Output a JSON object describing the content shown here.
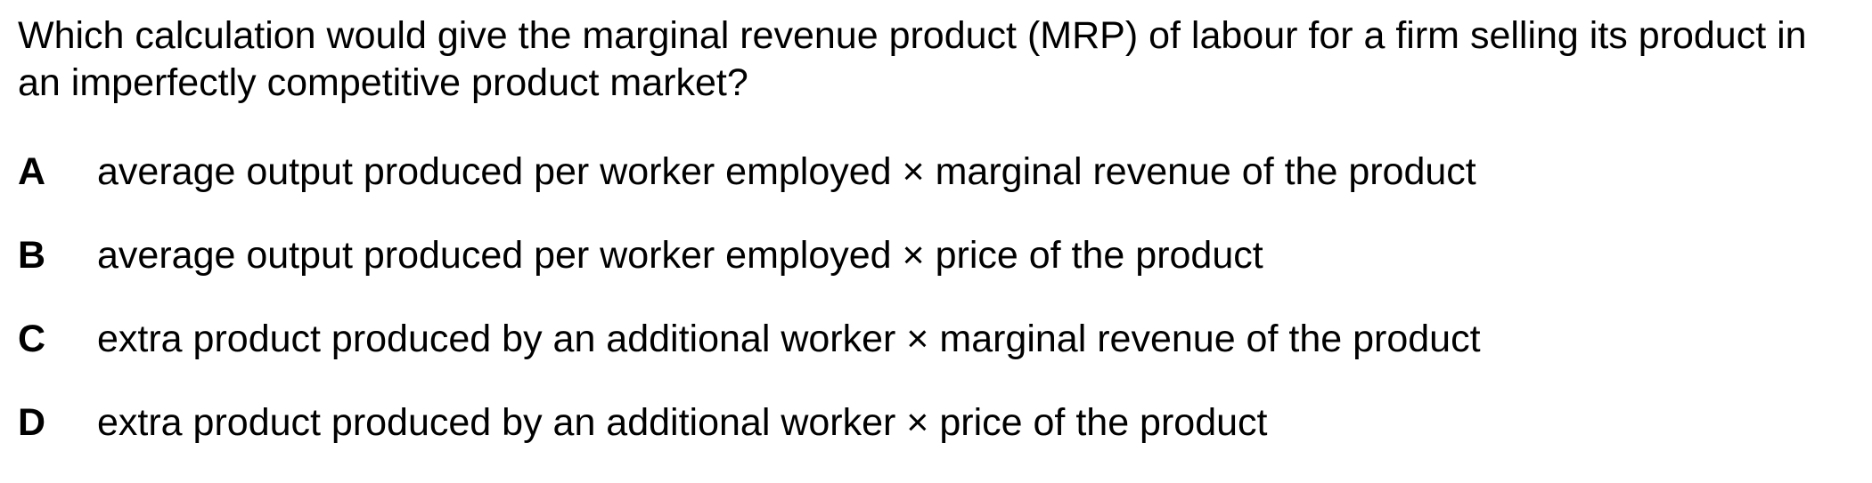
{
  "question": {
    "text": "Which calculation would give the marginal revenue product (MRP) of labour for a firm selling its product in an imperfectly competitive product market?"
  },
  "options": [
    {
      "letter": "A",
      "text": "average output produced per worker employed × marginal revenue of the product"
    },
    {
      "letter": "B",
      "text": "average output produced per worker employed × price of the product"
    },
    {
      "letter": "C",
      "text": "extra product produced by an additional worker × marginal revenue of the product"
    },
    {
      "letter": "D",
      "text": "extra product produced by an additional worker × price of the product"
    }
  ]
}
